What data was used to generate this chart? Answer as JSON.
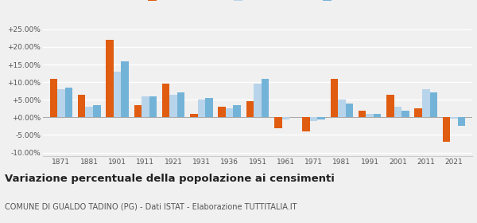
{
  "years": [
    1871,
    1881,
    1901,
    1911,
    1921,
    1931,
    1936,
    1951,
    1961,
    1971,
    1981,
    1991,
    2001,
    2011,
    2021
  ],
  "gualdo": [
    11.0,
    6.5,
    22.0,
    3.5,
    9.5,
    1.0,
    3.0,
    4.5,
    -3.0,
    -4.0,
    11.0,
    2.0,
    6.5,
    2.5,
    -7.0
  ],
  "provincia": [
    8.0,
    3.0,
    13.0,
    6.0,
    6.5,
    5.0,
    2.5,
    9.5,
    -0.5,
    -1.0,
    5.0,
    1.0,
    3.0,
    8.0,
    -0.3
  ],
  "umbria": [
    8.5,
    3.5,
    16.0,
    6.0,
    7.0,
    5.5,
    3.5,
    11.0,
    0.0,
    -0.5,
    4.0,
    1.0,
    2.0,
    7.0,
    -2.5
  ],
  "color_gualdo": "#e05c10",
  "color_provincia": "#b8d4ea",
  "color_umbria": "#74b3d8",
  "title": "Variazione percentuale della popolazione ai censimenti",
  "subtitle": "COMUNE DI GUALDO TADINO (PG) - Dati ISTAT - Elaborazione TUTTITALIA.IT",
  "ylim": [
    -11,
    27
  ],
  "yticks": [
    -10,
    -5,
    0,
    5,
    10,
    15,
    20,
    25
  ],
  "bg_color": "#f0f0f0",
  "grid_color": "#ffffff",
  "title_fontsize": 9.5,
  "subtitle_fontsize": 7.0
}
